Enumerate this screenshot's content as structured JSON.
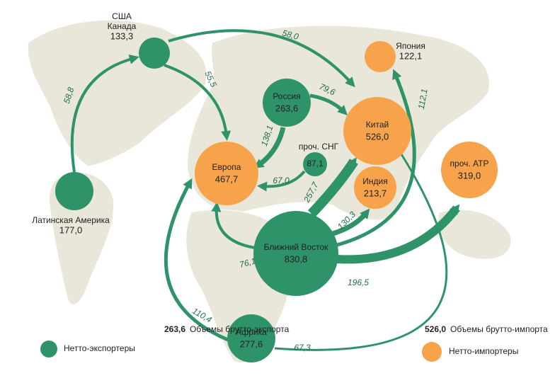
{
  "nodes": [
    {
      "lines": [
        "США",
        "Канада"
      ],
      "value": "133,3",
      "kind": "exporter"
    },
    {
      "lines": [
        "Латинская Америка"
      ],
      "value": "177,0",
      "kind": "exporter"
    },
    {
      "lines": [
        "Россия"
      ],
      "value": "263,6",
      "kind": "exporter"
    },
    {
      "lines": [
        "проч. СНГ"
      ],
      "value": "87,1",
      "kind": "exporter"
    },
    {
      "lines": [
        "Ближний Восток"
      ],
      "value": "830,8",
      "kind": "exporter"
    },
    {
      "lines": [
        "Африка"
      ],
      "value": "277,6",
      "kind": "exporter"
    },
    {
      "lines": [
        "Европа"
      ],
      "value": "467,7",
      "kind": "importer"
    },
    {
      "lines": [
        "Япония"
      ],
      "value": "122,1",
      "kind": "importer"
    },
    {
      "lines": [
        "Китай"
      ],
      "value": "526,0",
      "kind": "importer"
    },
    {
      "lines": [
        "Индия"
      ],
      "value": "213,7",
      "kind": "importer"
    },
    {
      "lines": [
        "проч. АТР"
      ],
      "value": "319,0",
      "kind": "importer"
    }
  ],
  "flows": [
    "58,8",
    "58,0",
    "55,5",
    "79,6",
    "138,1",
    "67,0",
    "257,7",
    "130,3",
    "76,1",
    "196,5",
    "112,1",
    "110,4",
    "67,3"
  ],
  "legend": {
    "export": {
      "value": "263,6",
      "text": "Объемы брутто-экспорта",
      "kind_text": "Нетто-экспортеры"
    },
    "import": {
      "value": "526,0",
      "text": "Объемы брутто-импорта",
      "kind_text": "Нетто-импортеры"
    }
  },
  "colors": {
    "exporter": "#2f9369",
    "importer": "#f7a34b"
  }
}
